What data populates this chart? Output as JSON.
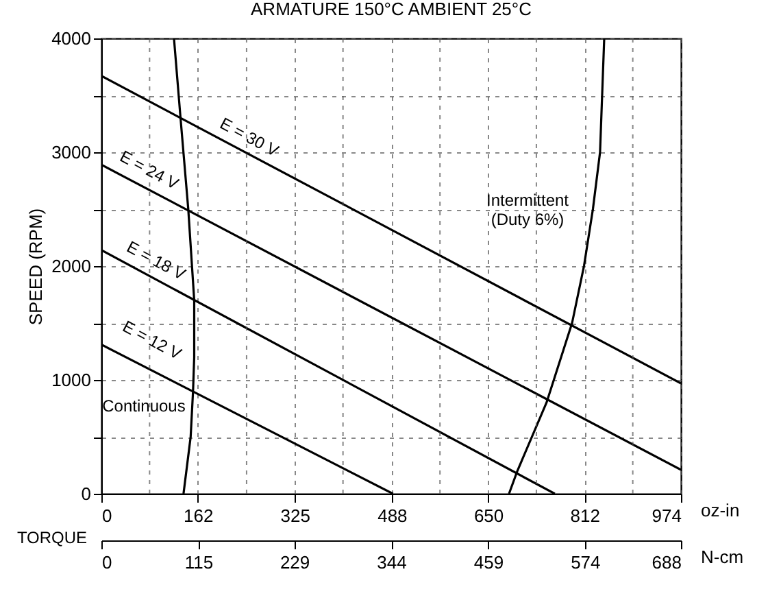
{
  "chart_data": {
    "type": "line",
    "title": "ARMATURE 150°C      AMBIENT 25°C",
    "ylabel": "SPEED (RPM)",
    "xlabel": "oz-in",
    "x2label": "N-cm",
    "series": [
      {
        "color": "#000000",
        "x": [
          0,
          974
        ],
        "values": [
          3670,
          970
        ]
      },
      {
        "color": "#000000",
        "x": [
          0,
          974
        ],
        "values": [
          2890,
          210
        ]
      },
      {
        "color": "#000000",
        "x": [
          0,
          762
        ],
        "values": [
          2140,
          0
        ]
      },
      {
        "color": "#000000",
        "x": [
          0,
          490
        ],
        "values": [
          1310,
          0
        ]
      },
      {
        "color": "#000000",
        "x": [
          122,
          133,
          146,
          156,
          156,
          154,
          150,
          138
        ],
        "values": [
          4000,
          3300,
          2500,
          1700,
          1200,
          900,
          500,
          0
        ]
      },
      {
        "color": "#000000",
        "x": [
          845,
          838,
          826,
          811,
          791,
          748,
          699,
          685
        ],
        "values": [
          4000,
          3000,
          2500,
          2000,
          1500,
          800,
          200,
          0
        ]
      }
    ],
    "xlim": [
      0,
      974
    ],
    "xticks": [
      0,
      {
        "value": 81,
        "label": null
      },
      162,
      {
        "value": 244,
        "label": null
      },
      325,
      {
        "value": 406,
        "label": null
      },
      488,
      {
        "value": 569,
        "label": null
      },
      650,
      {
        "value": 731,
        "label": null
      },
      812,
      {
        "value": 893,
        "label": null
      },
      974
    ],
    "ylim": [
      0,
      4000
    ],
    "yticks": [
      0,
      {
        "value": 500,
        "label": null
      },
      1000,
      {
        "value": 1500,
        "label": null
      },
      2000,
      {
        "value": 2500,
        "label": null
      },
      3000,
      {
        "value": 3500,
        "label": null
      },
      4000
    ],
    "x2lim": [
      0,
      688
    ],
    "x2ticks": [
      0,
      115,
      229,
      344,
      459,
      574,
      688
    ],
    "grid": true,
    "line_style": "solid",
    "legend": false,
    "annotations": [
      "E = 30 V",
      "E = 24 V",
      "E = 18 V",
      "E = 12 V",
      "Continuous",
      "Intermittent\n(Duty 6%)",
      "TORQUE"
    ]
  }
}
